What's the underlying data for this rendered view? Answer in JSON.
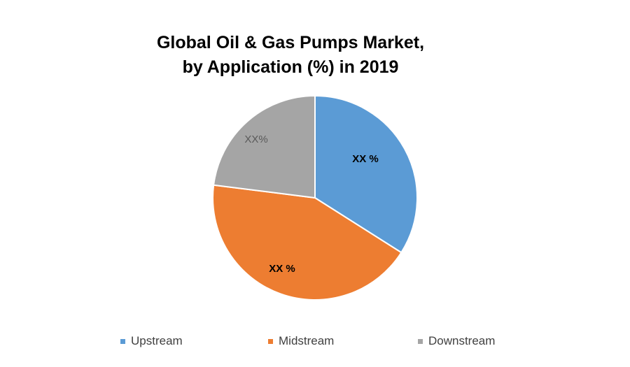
{
  "chart_data": {
    "type": "pie",
    "title_line1": "Global Oil & Gas Pumps Market,",
    "title_line2": "by Application (%) in 2019",
    "slices": [
      {
        "name": "Upstream",
        "value": 34,
        "color": "#5B9BD5",
        "label": "XX %",
        "label_bold": true,
        "label_color": "#000000"
      },
      {
        "name": "Midstream",
        "value": 43,
        "color": "#ED7D31",
        "label": "XX %",
        "label_bold": true,
        "label_color": "#000000"
      },
      {
        "name": "Downstream",
        "value": 23,
        "color": "#A5A5A5",
        "label": "XX%",
        "label_bold": false,
        "label_color": "#595959"
      }
    ],
    "legend_position": "bottom",
    "legend": [
      "Upstream",
      "Midstream",
      "Downstream"
    ]
  }
}
